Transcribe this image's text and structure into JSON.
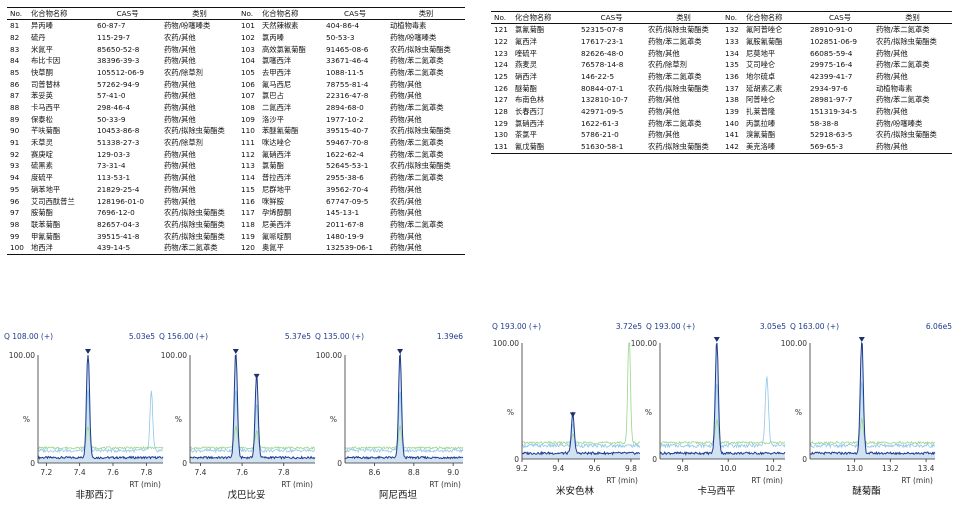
{
  "tables": {
    "headers": [
      "No.",
      "化合物名称",
      "CAS号",
      "类别"
    ],
    "left_rows": [
      [
        "81",
        "异丙嗪",
        "60-87-7",
        "药物/吩噻嗪类",
        "101",
        "天然辣椒素",
        "404-86-4",
        "动植物毒素"
      ],
      [
        "82",
        "硫丹",
        "115-29-7",
        "农药/其他",
        "102",
        "氯丙嗪",
        "50-53-3",
        "药物/吩噻嗪类"
      ],
      [
        "83",
        "米氮平",
        "85650-52-8",
        "药物/其他",
        "103",
        "高效氯氰菊酯",
        "91465-08-6",
        "农药/拟除虫菊酯类"
      ],
      [
        "84",
        "布比卡因",
        "38396-39-3",
        "药物/其他",
        "104",
        "氯噻西泮",
        "33671-46-4",
        "药物/苯二氮䓬类"
      ],
      [
        "85",
        "快草酮",
        "105512-06-9",
        "农药/除草剂",
        "105",
        "去甲西泮",
        "1088-11-5",
        "药物/苯二氮䓬类"
      ],
      [
        "86",
        "司普替林",
        "57262-94-9",
        "药物/其他",
        "106",
        "氟马西尼",
        "78755-81-4",
        "药物/其他"
      ],
      [
        "87",
        "苯妥英",
        "57-41-0",
        "药物/其他",
        "107",
        "氯巴占",
        "22316-47-8",
        "药物/其他"
      ],
      [
        "88",
        "卡马西平",
        "298-46-4",
        "药物/其他",
        "108",
        "二氮西泮",
        "2894-68-0",
        "药物/苯二氮䓬类"
      ],
      [
        "89",
        "保泰松",
        "50-33-9",
        "药物/其他",
        "109",
        "洛沙平",
        "1977-10-2",
        "药物/其他"
      ],
      [
        "90",
        "芊呋菊酯",
        "10453-86-8",
        "农药/拟除虫菊酯类",
        "110",
        "苯醚氰菊酯",
        "39515-40-7",
        "农药/拟除虫菊酯类"
      ],
      [
        "91",
        "禾草灵",
        "51338-27-3",
        "农药/除草剂",
        "111",
        "咪达唑仑",
        "59467-70-8",
        "药物/苯二氮䓬类"
      ],
      [
        "92",
        "赛庚啶",
        "129-03-3",
        "药物/其他",
        "112",
        "氟硝西泮",
        "1622-62-4",
        "药物/苯二氮䓬类"
      ],
      [
        "93",
        "硫黑素",
        "73-31-4",
        "药物/其他",
        "113",
        "氯菊酯",
        "52645-53-1",
        "农药/拟除虫菊酯类"
      ],
      [
        "94",
        "度硫平",
        "113-53-1",
        "药物/其他",
        "114",
        "普拉西泮",
        "2955-38-6",
        "药物/苯二氮䓬类"
      ],
      [
        "95",
        "硝苯地平",
        "21829-25-4",
        "药物/其他",
        "115",
        "尼群地平",
        "39562-70-4",
        "药物/其他"
      ],
      [
        "96",
        "艾司西酞普兰",
        "128196-01-0",
        "药物/其他",
        "116",
        "咪鲜胺",
        "67747-09-5",
        "农药/其他"
      ],
      [
        "97",
        "胺菊酯",
        "7696-12-0",
        "农药/拟除虫菊酯类",
        "117",
        "孕烯醇酮",
        "145-13-1",
        "药物/其他"
      ],
      [
        "98",
        "联苯菊酯",
        "82657-04-3",
        "农药/拟除虫菊酯类",
        "118",
        "尼美西泮",
        "2011-67-8",
        "药物/苯二氮䓬类"
      ],
      [
        "99",
        "甲氰菊酯",
        "39515-41-8",
        "农药/拟除虫菊酯类",
        "119",
        "氟哌啶酮",
        "1480-19-9",
        "药物/其他"
      ],
      [
        "100",
        "地西泮",
        "439-14-5",
        "药物/苯二氮䓬类",
        "120",
        "奥氮平",
        "132539-06-1",
        "药物/其他"
      ]
    ],
    "right_rows": [
      [
        "121",
        "氯氰菊酯",
        "52315-07-8",
        "农药/拟除虫菊酯类",
        "132",
        "氟阿普唑仑",
        "28910-91-0",
        "药物/苯二氮䓬类"
      ],
      [
        "122",
        "氟西泮",
        "17617-23-1",
        "药物/苯二氮䓬类",
        "133",
        "氟胺氰菊酯",
        "102851-06-9",
        "农药/拟除虫菊酯类"
      ],
      [
        "123",
        "喹硫平",
        "82626-48-0",
        "药物/其他",
        "134",
        "尼莫地平",
        "66085-59-4",
        "药物/其他"
      ],
      [
        "124",
        "燕麦灵",
        "76578-14-8",
        "农药/除草剂",
        "135",
        "艾司唑仑",
        "29975-16-4",
        "药物/苯二氮䓬类"
      ],
      [
        "125",
        "硝西泮",
        "146-22-5",
        "药物/苯二氮䓬类",
        "136",
        "地尔硫卓",
        "42399-41-7",
        "药物/其他"
      ],
      [
        "126",
        "醚菊酯",
        "80844-07-1",
        "农药/拟除虫菊酯类",
        "137",
        "延胡素乙素",
        "2934-97-6",
        "动植物毒素"
      ],
      [
        "127",
        "布南色林",
        "132810-10-7",
        "药物/其他",
        "138",
        "阿普唑仑",
        "28981-97-7",
        "药物/苯二氮䓬类"
      ],
      [
        "128",
        "长春西汀",
        "42971-09-5",
        "药物/其他",
        "139",
        "扎莱普隆",
        "151319-34-5",
        "药物/其他"
      ],
      [
        "129",
        "氯硝西泮",
        "1622-61-3",
        "药物/苯二氮䓬类",
        "140",
        "丙氯拉嗪",
        "58-38-8",
        "药物/吩噻嗪类"
      ],
      [
        "130",
        "茶氯平",
        "5786-21-0",
        "药物/其他",
        "141",
        "溴氰菊酯",
        "52918-63-5",
        "农药/拟除虫菊酯类"
      ],
      [
        "131",
        "氰戊菊酯",
        "51630-58-1",
        "农药/拟除虫菊酯类",
        "142",
        "美克洛嗪",
        "569-65-3",
        "药物/其他"
      ]
    ]
  },
  "chart_data": [
    {
      "type": "line",
      "name": "非那西汀",
      "header_left": "Q 108.00 (+)",
      "header_right": "5.03e5",
      "xlabel": "RT (min)",
      "ylabel": "%",
      "y_tick_labels": [
        "0",
        "100.00"
      ],
      "x_ticks": [
        7.2,
        7.4,
        7.6,
        7.8
      ],
      "x_tick_labels": [
        "7.2",
        "7.4",
        "7.6",
        "7.8"
      ],
      "xlim": [
        7.15,
        7.9
      ],
      "ylim": [
        0,
        100
      ],
      "peaks": [
        {
          "rt": 7.45,
          "height": 100
        }
      ],
      "colors": {
        "main": "#1f3b8f",
        "fill": "#c9def0",
        "trace2": "#8ec8e8",
        "trace3": "#9bd48a"
      }
    },
    {
      "type": "line",
      "name": "戊巴比妥",
      "header_left": "Q 156.00 (+)",
      "header_right": "5.37e5",
      "xlabel": "RT (min)",
      "ylabel": "%",
      "y_tick_labels": [
        "0",
        "100.00"
      ],
      "x_ticks": [
        7.4,
        7.6,
        7.8
      ],
      "x_tick_labels": [
        "7.4",
        "7.6",
        "7.8"
      ],
      "xlim": [
        7.35,
        7.95
      ],
      "ylim": [
        0,
        100
      ],
      "peaks": [
        {
          "rt": 7.57,
          "height": 100
        },
        {
          "rt": 7.67,
          "height": 77
        }
      ],
      "colors": {
        "main": "#1f3b8f",
        "fill": "#c9def0",
        "trace2": "#8ec8e8",
        "trace3": "#9bd48a"
      }
    },
    {
      "type": "line",
      "name": "阿尼西坦",
      "header_left": "Q 135.00 (+)",
      "header_right": "1.39e6",
      "xlabel": "RT (min)",
      "ylabel": "%",
      "y_tick_labels": [
        "0",
        "100.00"
      ],
      "x_ticks": [
        8.6,
        8.8,
        9.0
      ],
      "x_tick_labels": [
        "8.6",
        "8.8",
        "9.0"
      ],
      "xlim": [
        8.45,
        9.05
      ],
      "ylim": [
        0,
        100
      ],
      "peaks": [
        {
          "rt": 8.73,
          "height": 100
        }
      ],
      "colors": {
        "main": "#1f3b8f",
        "fill": "#c9def0",
        "trace2": "#8ec8e8",
        "trace3": "#9bd48a"
      }
    },
    {
      "type": "line",
      "name": "米安色林",
      "header_left": "Q 193.00 (+)",
      "header_right": "3.72e5",
      "xlabel": "RT (min)",
      "ylabel": "%",
      "y_tick_labels": [
        "0",
        "100.00"
      ],
      "x_ticks": [
        9.2,
        9.4,
        9.6,
        9.8
      ],
      "x_tick_labels": [
        "9.2",
        "9.4",
        "9.6",
        "9.8"
      ],
      "xlim": [
        9.2,
        9.85
      ],
      "ylim": [
        0,
        100
      ],
      "peaks": [
        {
          "rt": 9.48,
          "height": 35
        }
      ],
      "colors": {
        "main": "#1f3b8f",
        "fill": "#c9def0",
        "trace2": "#8ec8e8",
        "trace3": "#9bd48a"
      }
    },
    {
      "type": "line",
      "name": "卡马西平",
      "header_left": "Q 193.00 (+)",
      "header_right": "3.05e5",
      "xlabel": "RT (min)",
      "ylabel": "%",
      "y_tick_labels": [
        "0",
        "100.00"
      ],
      "x_ticks": [
        9.8,
        10.0,
        10.2
      ],
      "x_tick_labels": [
        "9.8",
        "10.0",
        "10.2"
      ],
      "xlim": [
        9.7,
        10.25
      ],
      "ylim": [
        0,
        100
      ],
      "peaks": [
        {
          "rt": 9.95,
          "height": 100
        }
      ],
      "colors": {
        "main": "#1f3b8f",
        "fill": "#c9def0",
        "trace2": "#8ec8e8",
        "trace3": "#9bd48a"
      }
    },
    {
      "type": "line",
      "name": "醚菊酯",
      "header_left": "Q 163.00 (+)",
      "header_right": "6.06e5",
      "xlabel": "RT (min)",
      "ylabel": "%",
      "y_tick_labels": [
        "0",
        "100.00"
      ],
      "x_ticks": [
        13.0,
        13.2,
        13.4
      ],
      "x_tick_labels": [
        "13.0",
        "13.2",
        "13.4"
      ],
      "xlim": [
        12.75,
        13.45
      ],
      "ylim": [
        0,
        100
      ],
      "peaks": [
        {
          "rt": 13.04,
          "height": 100
        }
      ],
      "colors": {
        "main": "#1f3b8f",
        "fill": "#c9def0",
        "trace2": "#8ec8e8",
        "trace3": "#9bd48a"
      }
    }
  ]
}
